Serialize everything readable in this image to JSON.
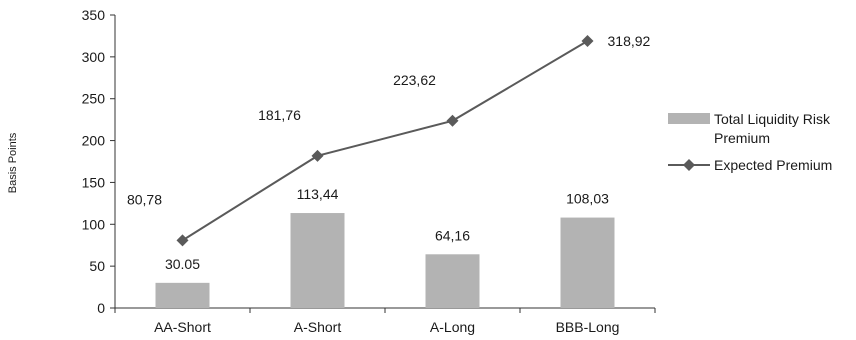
{
  "chart_data": {
    "type": "bar",
    "categories": [
      "AA-Short",
      "A-Short",
      "A-Long",
      "BBB-Long"
    ],
    "ylabel": "Basis Points",
    "ylim": [
      0,
      350
    ],
    "yticks": [
      0,
      50,
      100,
      150,
      200,
      250,
      300,
      350
    ],
    "grid": false,
    "legend_position": "right",
    "series": [
      {
        "name": "Total Liquidity Risk Premium",
        "type": "bar",
        "color": "#b3b3b3",
        "values": [
          30.05,
          113.44,
          64.16,
          108.03
        ],
        "data_labels": [
          "30.05",
          "113,44",
          "64,16",
          "108,03"
        ]
      },
      {
        "name": "Expected Premium",
        "type": "line",
        "marker": "diamond",
        "color": "#5a5a5a",
        "values": [
          80.78,
          181.76,
          223.62,
          318.92
        ],
        "data_labels": [
          "80,78",
          "181,76",
          "223,62",
          "318,92"
        ]
      }
    ]
  }
}
